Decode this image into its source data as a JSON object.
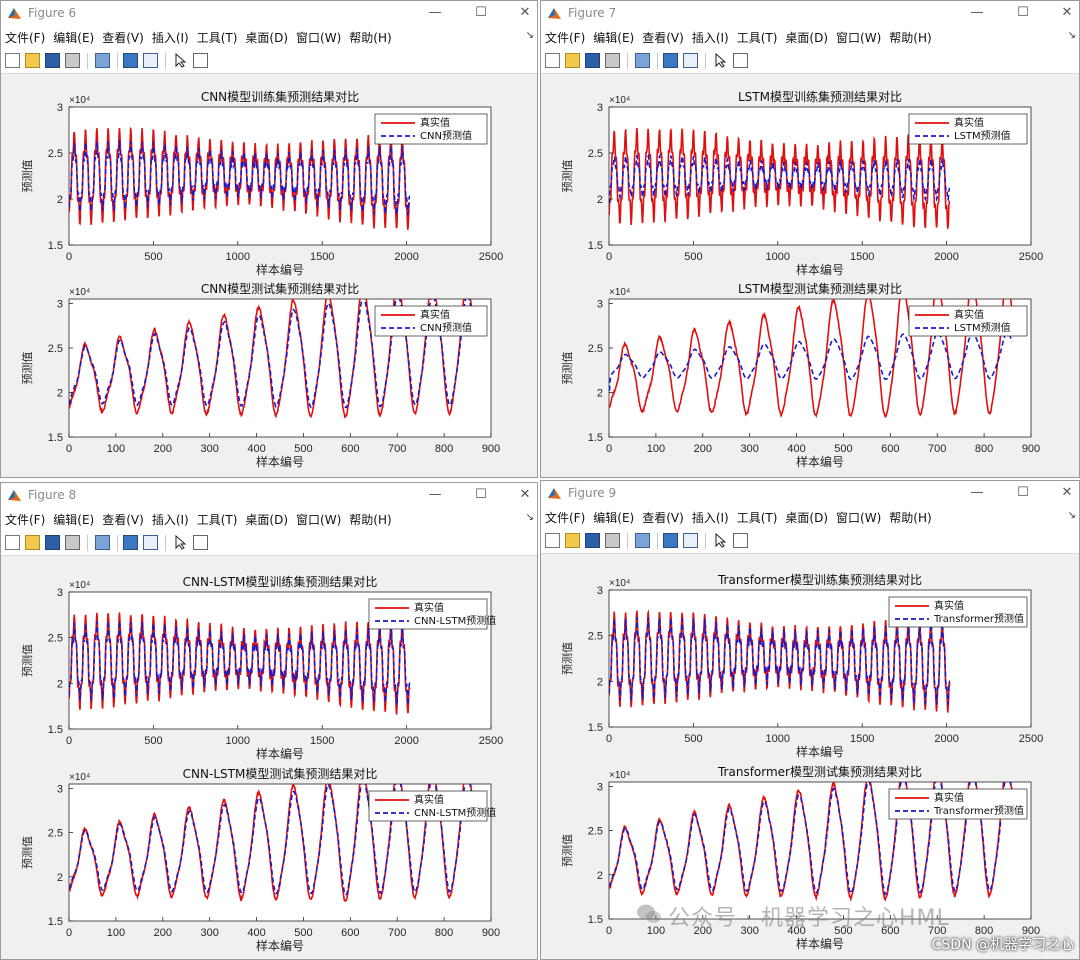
{
  "menu": [
    "文件(F)",
    "编辑(E)",
    "查看(V)",
    "插入(I)",
    "工具(T)",
    "桌面(D)",
    "窗口(W)",
    "帮助(H)"
  ],
  "colors": {
    "actual": "#e01010",
    "pred": "#1a1acc"
  },
  "windows": [
    {
      "title": "Figure 6",
      "charts": [
        {
          "type": "line",
          "title": "CNN模型训练集预测结果对比",
          "xlabel": "样本编号",
          "ylabel": "预测值",
          "exponent": "×10⁴",
          "xlim": [
            0,
            2500
          ],
          "xticks": [
            0,
            500,
            1000,
            1500,
            2000,
            2500
          ],
          "ylim": [
            1.5,
            3
          ],
          "yticks": [
            1.5,
            2,
            2.5,
            3
          ],
          "ytick_labels": [
            "1.5",
            "2",
            "2.5",
            "3"
          ],
          "legend": [
            "真实值",
            "CNN预测值"
          ],
          "n": 2020,
          "model": "train",
          "fit": 0.75
        },
        {
          "type": "line",
          "title": "CNN模型测试集预测结果对比",
          "xlabel": "样本编号",
          "ylabel": "预测值",
          "exponent": "×10⁴",
          "xlim": [
            0,
            900
          ],
          "xticks": [
            0,
            100,
            200,
            300,
            400,
            500,
            600,
            700,
            800,
            900
          ],
          "ylim": [
            1.5,
            3.05
          ],
          "yticks": [
            1.5,
            2,
            2.5,
            3
          ],
          "ytick_labels": [
            "1.5",
            "2",
            "2.5",
            "3"
          ],
          "legend": [
            "真实值",
            "CNN预测值"
          ],
          "n": 860,
          "model": "test",
          "fit": 0.85
        }
      ]
    },
    {
      "title": "Figure 7",
      "charts": [
        {
          "type": "line",
          "title": "LSTM模型训练集预测结果对比",
          "xlabel": "样本编号",
          "ylabel": "预测值",
          "exponent": "×10⁴",
          "xlim": [
            0,
            2500
          ],
          "xticks": [
            0,
            500,
            1000,
            1500,
            2000,
            2500
          ],
          "ylim": [
            1.5,
            3
          ],
          "yticks": [
            1.5,
            2,
            2.5,
            3
          ],
          "ytick_labels": [
            "1.5",
            "2",
            "2.5",
            "3"
          ],
          "legend": [
            "真实值",
            "LSTM预测值"
          ],
          "n": 2020,
          "model": "train",
          "fit": 0.45
        },
        {
          "type": "line",
          "title": "LSTM模型测试集预测结果对比",
          "xlabel": "样本编号",
          "ylabel": "预测值",
          "exponent": "×10⁴",
          "xlim": [
            0,
            900
          ],
          "xticks": [
            0,
            100,
            200,
            300,
            400,
            500,
            600,
            700,
            800,
            900
          ],
          "ylim": [
            1.5,
            3.05
          ],
          "yticks": [
            1.5,
            2,
            2.5,
            3
          ],
          "ytick_labels": [
            "1.5",
            "2",
            "2.5",
            "3"
          ],
          "legend": [
            "真实值",
            "LSTM预测值"
          ],
          "n": 860,
          "model": "test",
          "fit": 0.35
        }
      ]
    },
    {
      "title": "Figure 8",
      "charts": [
        {
          "type": "line",
          "title": "CNN-LSTM模型训练集预测结果对比",
          "xlabel": "样本编号",
          "ylabel": "预测值",
          "exponent": "×10⁴",
          "xlim": [
            0,
            2500
          ],
          "xticks": [
            0,
            500,
            1000,
            1500,
            2000,
            2500
          ],
          "ylim": [
            1.5,
            3
          ],
          "yticks": [
            1.5,
            2,
            2.5,
            3
          ],
          "ytick_labels": [
            "1.5",
            "2",
            "2.5",
            "3"
          ],
          "legend": [
            "真实值",
            "CNN-LSTM预测值"
          ],
          "n": 2020,
          "model": "train",
          "fit": 0.85
        },
        {
          "type": "line",
          "title": "CNN-LSTM模型测试集预测结果对比",
          "xlabel": "样本编号",
          "ylabel": "预测值",
          "exponent": "×10⁴",
          "xlim": [
            0,
            900
          ],
          "xticks": [
            0,
            100,
            200,
            300,
            400,
            500,
            600,
            700,
            800,
            900
          ],
          "ylim": [
            1.5,
            3.05
          ],
          "yticks": [
            1.5,
            2,
            2.5,
            3
          ],
          "ytick_labels": [
            "1.5",
            "2",
            "2.5",
            "3"
          ],
          "legend": [
            "真实值",
            "CNN-LSTM预测值"
          ],
          "n": 860,
          "model": "test",
          "fit": 0.9
        }
      ]
    },
    {
      "title": "Figure 9",
      "charts": [
        {
          "type": "line",
          "title": "Transformer模型训练集预测结果对比",
          "xlabel": "样本编号",
          "ylabel": "预测值",
          "exponent": "×10⁴",
          "xlim": [
            0,
            2500
          ],
          "xticks": [
            0,
            500,
            1000,
            1500,
            2000,
            2500
          ],
          "ylim": [
            1.5,
            3
          ],
          "yticks": [
            1.5,
            2,
            2.5,
            3
          ],
          "ytick_labels": [
            "1.5",
            "2",
            "2.5",
            "3"
          ],
          "legend": [
            "真实值",
            "Transformer预测值"
          ],
          "n": 2020,
          "model": "train",
          "fit": 0.9
        },
        {
          "type": "line",
          "title": "Transformer模型测试集预测结果对比",
          "xlabel": "样本编号",
          "ylabel": "预测值",
          "exponent": "×10⁴",
          "xlim": [
            0,
            900
          ],
          "xticks": [
            0,
            100,
            200,
            300,
            400,
            500,
            600,
            700,
            800,
            900
          ],
          "ylim": [
            1.5,
            3.05
          ],
          "yticks": [
            1.5,
            2,
            2.5,
            3
          ],
          "ytick_labels": [
            "1.5",
            "2",
            "2.5",
            "3"
          ],
          "legend": [
            "真实值",
            "Transformer预测值"
          ],
          "n": 860,
          "model": "test",
          "fit": 0.92
        }
      ]
    }
  ],
  "watermark": "公众号 · 机器学习之心HML",
  "csdn": "CSDN @机器学习之心"
}
